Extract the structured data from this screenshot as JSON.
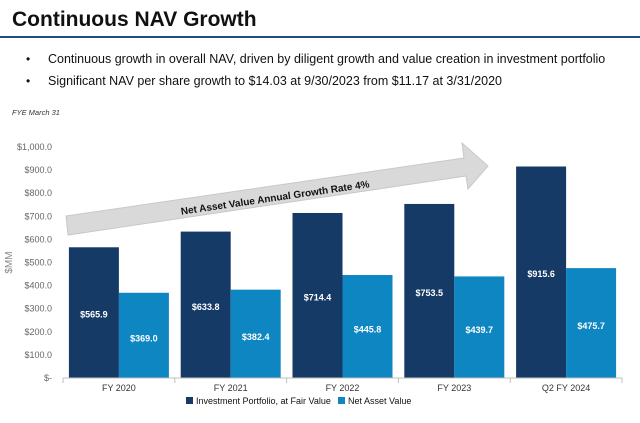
{
  "page": {
    "title": "Continuous NAV Growth",
    "bullet_symbol": "•",
    "bullets": [
      "Continuous growth in overall NAV, driven by diligent growth and value creation in investment portfolio",
      "Significant NAV per share growth to $14.03 at 9/30/2023 from $11.17 at 3/31/2020"
    ],
    "fye_note": "FYE March 31"
  },
  "chart_data": {
    "type": "bar",
    "title": "",
    "xlabel": "",
    "ylabel": "$MM",
    "ylim": [
      0,
      1000
    ],
    "yticks": [
      {
        "value": 0,
        "label": "$-"
      },
      {
        "value": 100,
        "label": "$100.0"
      },
      {
        "value": 200,
        "label": "$200.0"
      },
      {
        "value": 300,
        "label": "$300.0"
      },
      {
        "value": 400,
        "label": "$400.0"
      },
      {
        "value": 500,
        "label": "$500.0"
      },
      {
        "value": 600,
        "label": "$600.0"
      },
      {
        "value": 700,
        "label": "$700.0"
      },
      {
        "value": 800,
        "label": "$800.0"
      },
      {
        "value": 900,
        "label": "$900.0"
      },
      {
        "value": 1000,
        "label": "$1,000.0"
      }
    ],
    "grid": false,
    "legend_position": "bottom",
    "categories": [
      "FY 2020",
      "FY 2021",
      "FY 2022",
      "FY 2023",
      "Q2 FY 2024"
    ],
    "series": [
      {
        "name": "Investment Portfolio, at Fair Value",
        "color": "#163a66",
        "values": [
          565.9,
          633.8,
          714.4,
          753.5,
          915.6
        ],
        "labels": [
          "$565.9",
          "$633.8",
          "$714.4",
          "$753.5",
          "$915.6"
        ]
      },
      {
        "name": "Net Asset Value",
        "color": "#0d86c2",
        "values": [
          369.0,
          382.4,
          445.8,
          439.7,
          475.7
        ],
        "labels": [
          "$369.0",
          "$382.4",
          "$445.8",
          "$439.7",
          "$475.7"
        ]
      }
    ],
    "annotation": "Net Asset Value Annual Growth Rate 4%"
  }
}
